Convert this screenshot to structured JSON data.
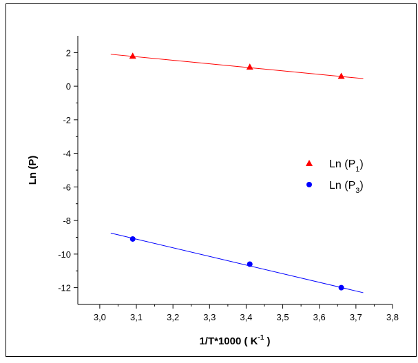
{
  "chart_data": {
    "type": "scatter",
    "x_label": [
      "1/T*1000 ( K",
      "-1",
      " )"
    ],
    "y_label": "Ln (P)",
    "xlim": [
      2.94,
      3.8
    ],
    "xticks": [
      {
        "value": 3.0,
        "label": "3,0"
      },
      {
        "value": 3.1,
        "label": "3,1"
      },
      {
        "value": 3.2,
        "label": "3,2"
      },
      {
        "value": 3.3,
        "label": "3,3"
      },
      {
        "value": 3.4,
        "label": "3,4"
      },
      {
        "value": 3.5,
        "label": "3,5"
      },
      {
        "value": 3.6,
        "label": "3,6"
      },
      {
        "value": 3.7,
        "label": "3,7"
      },
      {
        "value": 3.8,
        "label": "3,8"
      }
    ],
    "ylim": [
      -13,
      3
    ],
    "yticks": [
      -12,
      -10,
      -8,
      -6,
      -4,
      -2,
      0,
      2
    ],
    "series": [
      {
        "name": [
          "Ln (P",
          "1",
          ")"
        ],
        "color": "#ff0000",
        "marker": "triangle",
        "x": [
          3.09,
          3.41,
          3.66
        ],
        "values": [
          1.8,
          1.15,
          0.6
        ],
        "fit_x": [
          3.03,
          3.72
        ],
        "fit_values": [
          1.9,
          0.45
        ]
      },
      {
        "name": [
          "Ln (P",
          "3",
          ")"
        ],
        "color": "#0000ff",
        "marker": "circle",
        "x": [
          3.09,
          3.41,
          3.66
        ],
        "values": [
          -9.1,
          -10.6,
          -12.0
        ],
        "fit_x": [
          3.03,
          3.72
        ],
        "fit_values": [
          -8.75,
          -12.3
        ]
      }
    ]
  }
}
